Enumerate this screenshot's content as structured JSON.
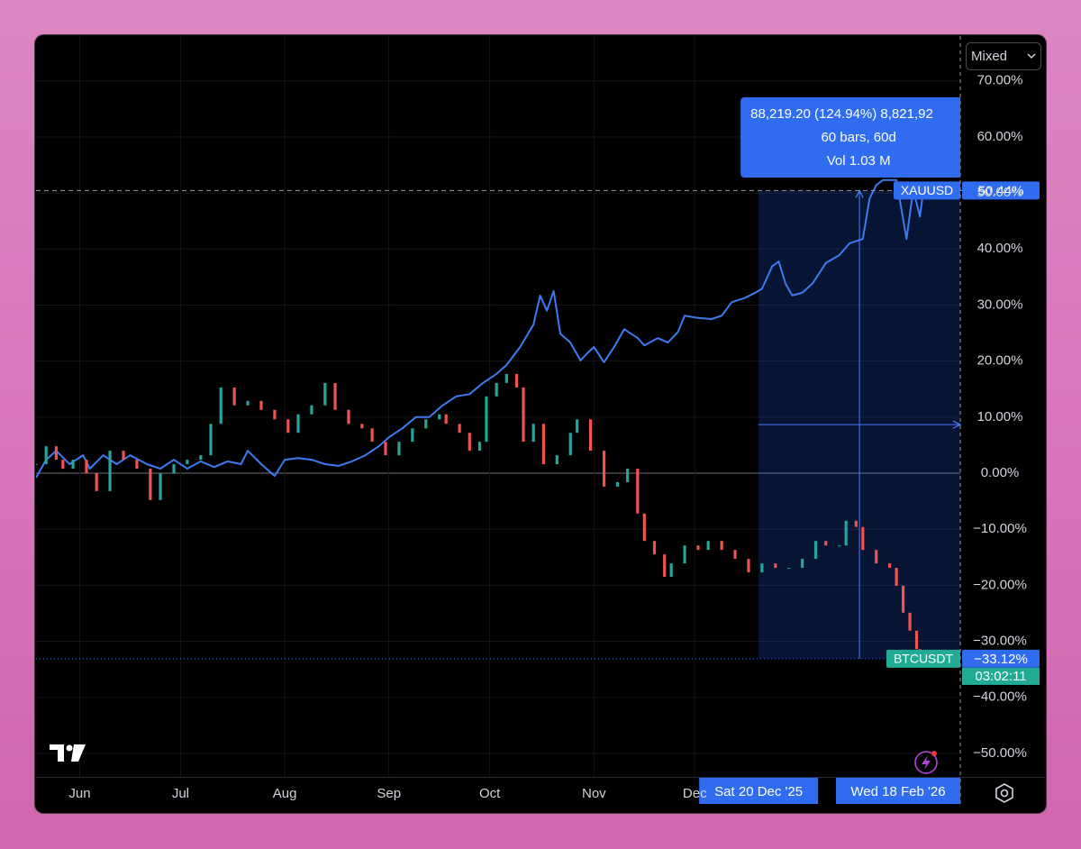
{
  "chart_data": {
    "type": "line",
    "control": "Mixed",
    "xlim": [
      "2025-05-19",
      "2026-02-18"
    ],
    "ylim": [
      -54.2,
      78
    ],
    "grid": true,
    "xticks": [
      {
        "value": "2025-06-01",
        "label": "Jun"
      },
      {
        "value": "2025-07-01",
        "label": "Jul"
      },
      {
        "value": "2025-08-01",
        "label": "Aug"
      },
      {
        "value": "2025-09-01",
        "label": "Sep"
      },
      {
        "value": "2025-10-01",
        "label": "Oct"
      },
      {
        "value": "2025-11-01",
        "label": "Nov"
      },
      {
        "value": "2025-12-01",
        "label": "Dec"
      }
    ],
    "yticks": [
      {
        "value": 70,
        "label": "70.00%"
      },
      {
        "value": 60,
        "label": "60.00%"
      },
      {
        "value": 50,
        "label": "50.00%"
      },
      {
        "value": 40,
        "label": "40.00%"
      },
      {
        "value": 30,
        "label": "30.00%"
      },
      {
        "value": 20,
        "label": "20.00%"
      },
      {
        "value": 10,
        "label": "10.00%"
      },
      {
        "value": 0,
        "label": "0.00%"
      },
      {
        "value": -10,
        "label": "−10.00%"
      },
      {
        "value": -20,
        "label": "−20.00%"
      },
      {
        "value": -30,
        "label": "−30.00%"
      },
      {
        "value": -40,
        "label": "−40.00%"
      },
      {
        "value": -50,
        "label": "−50.00%"
      }
    ],
    "series": [
      {
        "name": "XAUUSD",
        "type": "line",
        "color": "#3d7bf2",
        "last_label": "50.44%",
        "x": [
          "2025-05-19",
          "2025-05-22",
          "2025-05-25",
          "2025-05-29",
          "2025-06-02",
          "2025-06-04",
          "2025-06-08",
          "2025-06-12",
          "2025-06-16",
          "2025-06-21",
          "2025-06-25",
          "2025-06-29",
          "2025-07-03",
          "2025-07-07",
          "2025-07-11",
          "2025-07-15",
          "2025-07-19",
          "2025-07-21",
          "2025-07-25",
          "2025-07-29",
          "2025-08-01",
          "2025-08-05",
          "2025-08-09",
          "2025-08-13",
          "2025-08-17",
          "2025-08-21",
          "2025-08-25",
          "2025-08-29",
          "2025-09-01",
          "2025-09-05",
          "2025-09-09",
          "2025-09-13",
          "2025-09-17",
          "2025-09-21",
          "2025-09-25",
          "2025-09-29",
          "2025-10-03",
          "2025-10-06",
          "2025-10-10",
          "2025-10-14",
          "2025-10-16",
          "2025-10-18",
          "2025-10-20",
          "2025-10-22",
          "2025-10-25",
          "2025-10-28",
          "2025-10-30",
          "2025-11-01",
          "2025-11-04",
          "2025-11-07",
          "2025-11-10",
          "2025-11-14",
          "2025-11-16",
          "2025-11-20",
          "2025-11-23",
          "2025-11-26",
          "2025-11-28",
          "2025-12-02",
          "2025-12-06",
          "2025-12-09",
          "2025-12-12",
          "2025-12-16",
          "2025-12-19",
          "2025-12-21",
          "2025-12-24",
          "2025-12-26",
          "2025-12-28",
          "2025-12-30",
          "2026-01-02",
          "2026-01-05",
          "2026-01-09",
          "2026-01-13",
          "2026-01-16",
          "2026-01-20",
          "2026-01-22",
          "2026-01-24",
          "2026-01-26",
          "2026-01-30",
          "2026-02-02",
          "2026-02-04",
          "2026-02-06",
          "2026-02-07"
        ],
        "values": [
          -0.8,
          2.4,
          4.0,
          1.6,
          3.2,
          0.8,
          3.2,
          1.6,
          3.2,
          1.6,
          0.8,
          2.4,
          0.8,
          2.1,
          1.1,
          2.1,
          1.6,
          4.0,
          1.6,
          -0.5,
          2.4,
          2.7,
          2.4,
          1.6,
          1.3,
          2.1,
          3.2,
          4.8,
          6.4,
          8.0,
          10.0,
          10.0,
          12.1,
          13.7,
          14.1,
          16.1,
          17.7,
          19.3,
          22.5,
          26.5,
          31.7,
          29.0,
          32.5,
          24.9,
          23.3,
          20.1,
          21.4,
          22.5,
          19.8,
          22.5,
          25.7,
          24.1,
          22.8,
          24.1,
          23.3,
          25.2,
          28.1,
          27.7,
          27.5,
          28.1,
          30.5,
          31.3,
          32.2,
          32.9,
          36.9,
          37.8,
          33.8,
          31.7,
          32.2,
          33.8,
          37.5,
          38.9,
          41.0,
          41.8,
          49.0,
          51.4,
          52.3,
          52.3,
          41.8,
          50.6,
          45.8,
          50.44
        ]
      },
      {
        "name": "BTCUSDT",
        "type": "candlestick",
        "color": "#22ab94",
        "up_color": "#26a69a",
        "down_color": "#ef5350",
        "last_label": "−33.12%",
        "countdown": "03:02:11",
        "x": [
          "2025-05-19",
          "2025-05-22",
          "2025-05-25",
          "2025-05-27",
          "2025-05-30",
          "2025-06-03",
          "2025-06-06",
          "2025-06-10",
          "2025-06-14",
          "2025-06-18",
          "2025-06-22",
          "2025-06-25",
          "2025-06-29",
          "2025-07-03",
          "2025-07-07",
          "2025-07-10",
          "2025-07-13",
          "2025-07-17",
          "2025-07-21",
          "2025-07-25",
          "2025-07-29",
          "2025-08-02",
          "2025-08-05",
          "2025-08-09",
          "2025-08-13",
          "2025-08-16",
          "2025-08-20",
          "2025-08-24",
          "2025-08-27",
          "2025-08-31",
          "2025-09-04",
          "2025-09-08",
          "2025-09-12",
          "2025-09-16",
          "2025-09-18",
          "2025-09-22",
          "2025-09-25",
          "2025-09-28",
          "2025-09-30",
          "2025-10-03",
          "2025-10-06",
          "2025-10-09",
          "2025-10-11",
          "2025-10-14",
          "2025-10-17",
          "2025-10-21",
          "2025-10-25",
          "2025-10-27",
          "2025-10-31",
          "2025-11-04",
          "2025-11-08",
          "2025-11-11",
          "2025-11-14",
          "2025-11-16",
          "2025-11-19",
          "2025-11-22",
          "2025-11-24",
          "2025-11-28",
          "2025-12-02",
          "2025-12-05",
          "2025-12-09",
          "2025-12-13",
          "2025-12-17",
          "2025-12-21",
          "2025-12-25",
          "2025-12-29",
          "2026-01-02",
          "2026-01-06",
          "2026-01-09",
          "2026-01-13",
          "2026-01-15",
          "2026-01-18",
          "2026-01-20",
          "2026-01-24",
          "2026-01-28",
          "2026-01-30",
          "2026-02-01",
          "2026-02-03",
          "2026-02-05",
          "2026-02-06"
        ],
        "values": [
          1.6,
          4.8,
          2.4,
          0.8,
          2.4,
          0.0,
          -3.2,
          4.0,
          2.4,
          0.8,
          -4.8,
          0.0,
          1.6,
          2.4,
          3.2,
          8.8,
          15.3,
          12.1,
          12.9,
          11.3,
          9.6,
          7.2,
          10.5,
          12.1,
          16.1,
          11.3,
          8.8,
          8.0,
          5.6,
          3.2,
          5.6,
          8.0,
          9.6,
          10.5,
          8.8,
          7.2,
          4.0,
          5.6,
          13.7,
          16.1,
          17.7,
          15.3,
          5.6,
          8.8,
          1.6,
          3.2,
          7.2,
          9.6,
          4.0,
          -2.4,
          -1.6,
          0.8,
          -7.2,
          -12.1,
          -14.5,
          -18.5,
          -16.1,
          -12.9,
          -13.7,
          -12.1,
          -13.7,
          -15.3,
          -17.7,
          -16.1,
          -16.9,
          -16.9,
          -15.3,
          -12.1,
          -12.9,
          -12.9,
          -8.5,
          -9.6,
          -13.7,
          -16.1,
          -16.9,
          -20.1,
          -24.9,
          -28.1,
          -31.4,
          -33.12
        ]
      }
    ],
    "measure": {
      "from": "2025-12-20",
      "to": "2026-02-18",
      "range": [
        -33.12,
        50.44
      ],
      "from_label": "Sat 20 Dec '25",
      "to_label": "Wed 18 Feb '26",
      "lines": [
        "88,219.20 (124.94%) 8,821,92",
        "60 bars, 60d",
        "Vol 1.03 M"
      ]
    }
  }
}
